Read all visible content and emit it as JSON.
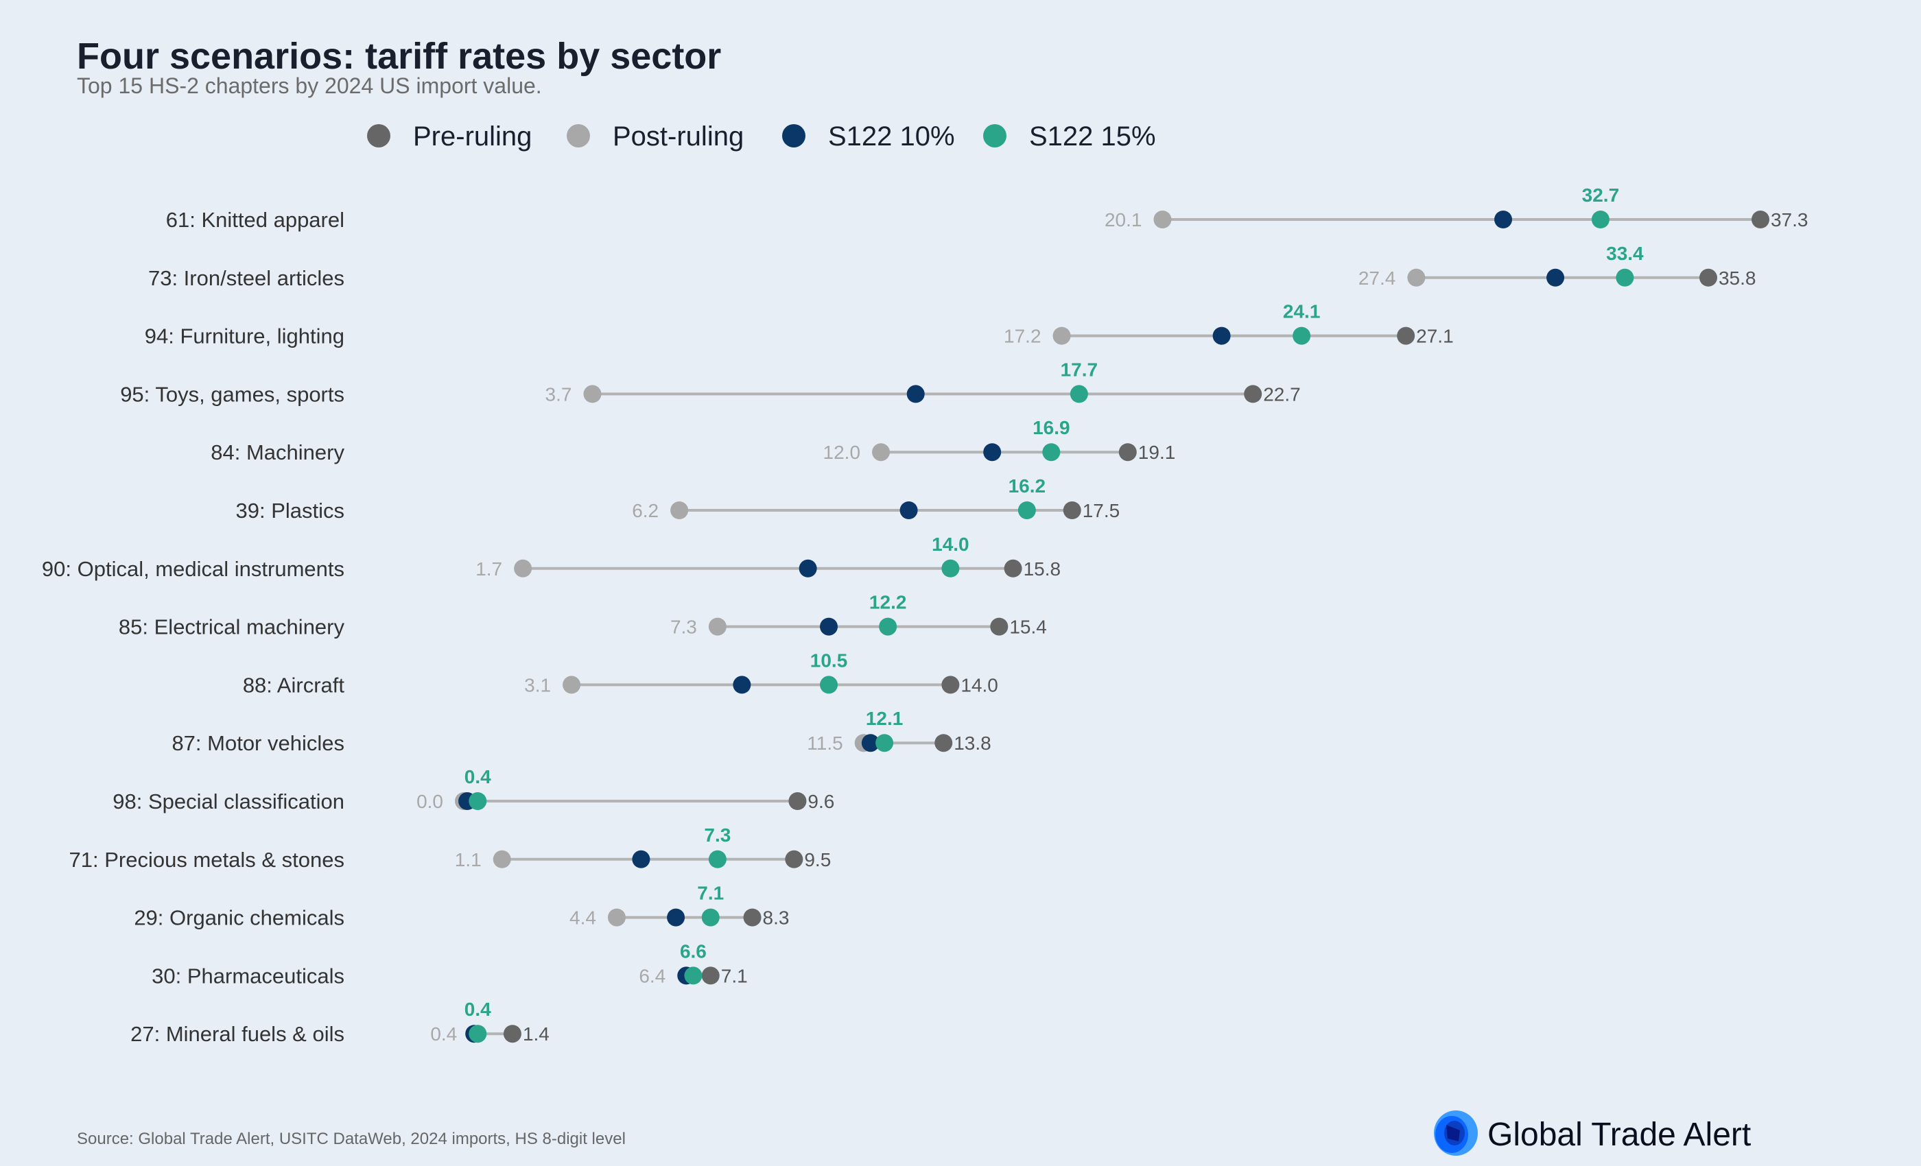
{
  "chart_data": {
    "type": "dumbbell",
    "title": "Four scenarios: tariff rates by sector",
    "subtitle": "Top 15 HS-2 chapters by 2024 US import value.",
    "xlabel": "",
    "ylabel": "",
    "xlim": [
      0,
      40
    ],
    "grid": false,
    "legend_position": "top",
    "legend": [
      {
        "name": "Pre-ruling",
        "color": "#666666"
      },
      {
        "name": "Post-ruling",
        "color": "#a8a8a8"
      },
      {
        "name": "S122 10%",
        "color": "#0b3768"
      },
      {
        "name": "S122 15%",
        "color": "#2aa58a"
      }
    ],
    "categories": [
      "61: Knitted apparel",
      "73: Iron/steel articles",
      "94: Furniture, lighting",
      "95: Toys, games, sports",
      "84: Machinery",
      "39: Plastics",
      "90: Optical, medical instruments",
      "85: Electrical machinery",
      "88: Aircraft",
      "87: Motor vehicles",
      "98: Special classification",
      "71: Precious metals & stones",
      "29: Organic chemicals",
      "30: Pharmaceuticals",
      "27: Mineral fuels & oils"
    ],
    "series": [
      {
        "name": "Pre-ruling",
        "values": [
          37.3,
          35.8,
          27.1,
          22.7,
          19.1,
          17.5,
          15.8,
          15.4,
          14.0,
          13.8,
          9.6,
          9.5,
          8.3,
          7.1,
          1.4
        ],
        "labels": [
          "37.3",
          "35.8",
          "27.1",
          "22.7",
          "19.1",
          "17.5",
          "15.8",
          "15.4",
          "14.0",
          "13.8",
          "9.6",
          "9.5",
          "8.3",
          "7.1",
          "1.4"
        ]
      },
      {
        "name": "Post-ruling",
        "values": [
          20.1,
          27.4,
          17.2,
          3.7,
          12.0,
          6.2,
          1.7,
          7.3,
          3.1,
          11.5,
          0.0,
          1.1,
          4.4,
          6.4,
          0.4
        ],
        "labels": [
          "20.1",
          "27.4",
          "17.2",
          "3.7",
          "12.0",
          "6.2",
          "1.7",
          "7.3",
          "3.1",
          "11.5",
          "0.0",
          "1.1",
          "4.4",
          "6.4",
          "0.4"
        ]
      },
      {
        "name": "S122 10%",
        "values": [
          29.9,
          31.4,
          21.8,
          13.0,
          15.2,
          12.8,
          9.9,
          10.5,
          8.0,
          11.7,
          0.1,
          5.1,
          6.1,
          6.4,
          0.3
        ]
      },
      {
        "name": "S122 15%",
        "values": [
          32.7,
          33.4,
          24.1,
          17.7,
          16.9,
          16.2,
          14.0,
          12.2,
          10.5,
          12.1,
          0.4,
          7.3,
          7.1,
          6.6,
          0.4
        ],
        "labels": [
          "32.7",
          "33.4",
          "24.1",
          "17.7",
          "16.9",
          "16.2",
          "14.0",
          "12.2",
          "10.5",
          "12.1",
          "0.4",
          "7.3",
          "7.1",
          "6.6",
          "0.4"
        ]
      }
    ]
  },
  "source": "Source: Global Trade Alert, USITC DataWeb, 2024 imports, HS 8-digit level",
  "logo": {
    "text": "Global Trade Alert"
  }
}
